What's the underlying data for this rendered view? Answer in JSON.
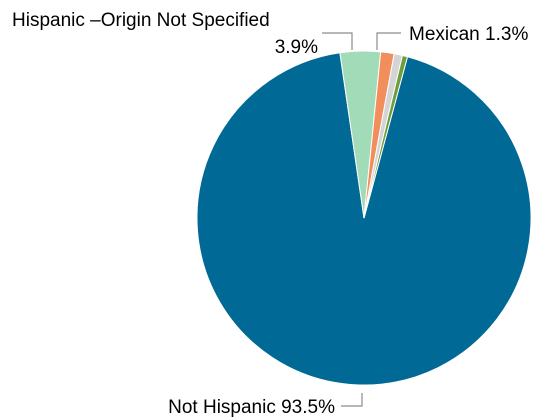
{
  "chart_data": {
    "type": "pie",
    "title": "",
    "slices": [
      {
        "label": "Not Hispanic",
        "value": 93.5,
        "value_label": "93.5%",
        "color": "#006996"
      },
      {
        "label": "Hispanic –Origin Not Specified",
        "value": 3.9,
        "value_label": "3.9%",
        "color": "#a1dbb8"
      },
      {
        "label": "Mexican",
        "value": 1.3,
        "value_label": "1.3%",
        "color": "#f28d5c"
      },
      {
        "label": "",
        "value": 0.8,
        "value_label": "",
        "color": "#d4d4d4"
      },
      {
        "label": "",
        "value": 0.5,
        "value_label": "",
        "color": "#6c9e3a"
      }
    ],
    "legend": "none"
  },
  "labels": {
    "not_hispanic": "Not Hispanic 93.5%",
    "origin_not_specified_name": "Hispanic –Origin Not Specified",
    "origin_not_specified_pct": "3.9%",
    "mexican": "Mexican 1.3%"
  }
}
